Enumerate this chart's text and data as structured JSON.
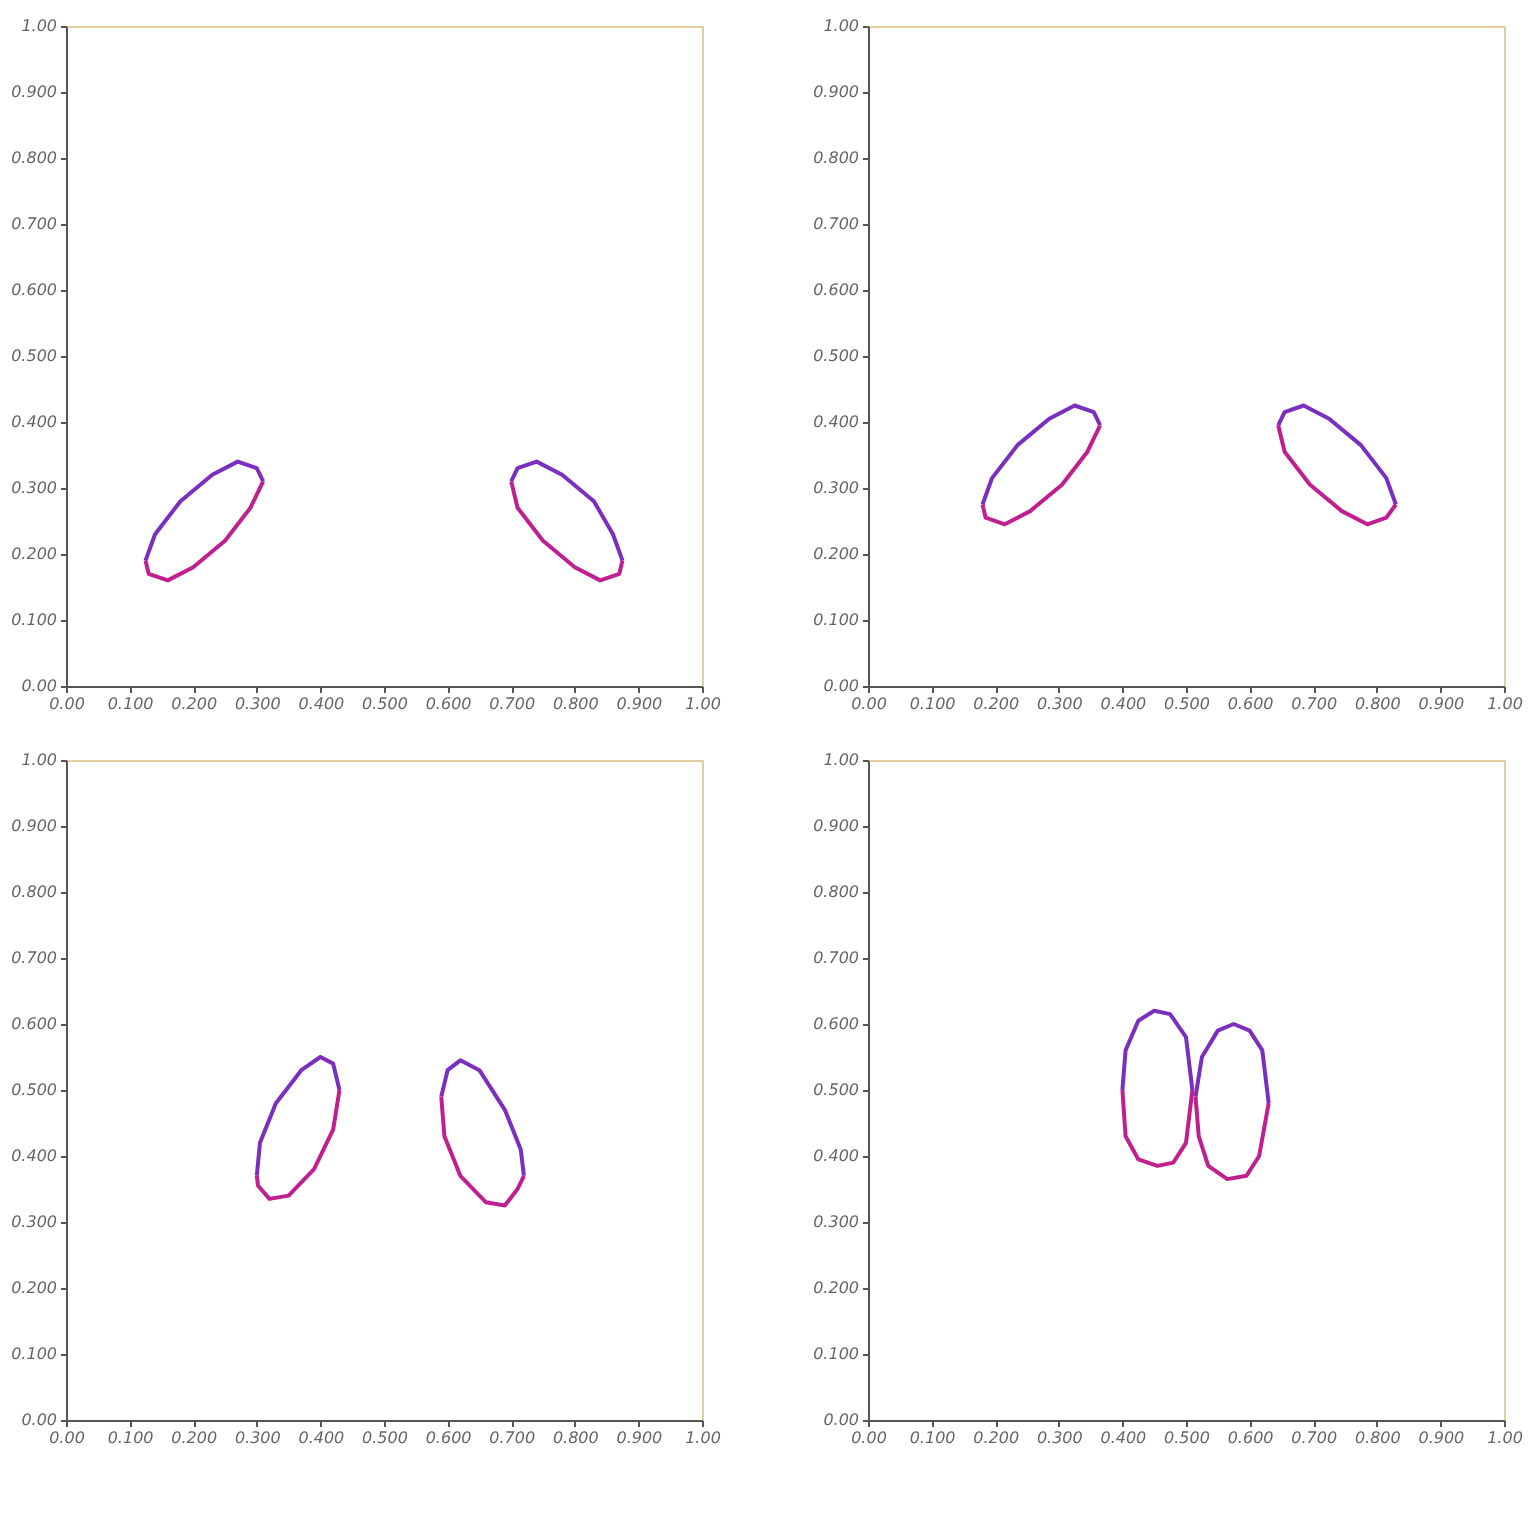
{
  "chart_data": [
    {
      "type": "line",
      "marker": "none",
      "line_style": "solid",
      "grid": false,
      "xlim": [
        0,
        1
      ],
      "ylim": [
        0,
        1
      ],
      "xticks": [
        {
          "value": 0,
          "label": "0.00"
        },
        {
          "value": 0.1,
          "label": "0.100"
        },
        {
          "value": 0.2,
          "label": "0.200"
        },
        {
          "value": 0.3,
          "label": "0.300"
        },
        {
          "value": 0.4,
          "label": "0.400"
        },
        {
          "value": 0.5,
          "label": "0.500"
        },
        {
          "value": 0.6,
          "label": "0.600"
        },
        {
          "value": 0.7,
          "label": "0.700"
        },
        {
          "value": 0.8,
          "label": "0.800"
        },
        {
          "value": 0.9,
          "label": "0.900"
        },
        {
          "value": 1,
          "label": "1.00"
        }
      ],
      "yticks": [
        {
          "value": 0,
          "label": "0.00"
        },
        {
          "value": 0.1,
          "label": "0.100"
        },
        {
          "value": 0.2,
          "label": "0.200"
        },
        {
          "value": 0.3,
          "label": "0.300"
        },
        {
          "value": 0.4,
          "label": "0.400"
        },
        {
          "value": 0.5,
          "label": "0.500"
        },
        {
          "value": 0.6,
          "label": "0.600"
        },
        {
          "value": 0.7,
          "label": "0.700"
        },
        {
          "value": 0.8,
          "label": "0.800"
        },
        {
          "value": 0.9,
          "label": "0.900"
        },
        {
          "value": 1,
          "label": "1.00"
        }
      ],
      "series": [
        {
          "color": "#7b2fbf",
          "x": [
            0.125,
            0.14,
            0.18,
            0.23,
            0.27,
            0.3,
            0.31
          ],
          "values": [
            0.19,
            0.23,
            0.28,
            0.32,
            0.34,
            0.33,
            0.31
          ]
        },
        {
          "color": "#c0208f",
          "x": [
            0.125,
            0.13,
            0.16,
            0.2,
            0.25,
            0.29,
            0.31
          ],
          "values": [
            0.19,
            0.17,
            0.16,
            0.18,
            0.22,
            0.27,
            0.31
          ]
        },
        {
          "color": "#7b2fbf",
          "x": [
            0.7,
            0.71,
            0.74,
            0.78,
            0.83,
            0.86,
            0.875
          ],
          "values": [
            0.31,
            0.33,
            0.34,
            0.32,
            0.28,
            0.23,
            0.19
          ]
        },
        {
          "color": "#c0208f",
          "x": [
            0.7,
            0.71,
            0.75,
            0.8,
            0.84,
            0.87,
            0.875
          ],
          "values": [
            0.31,
            0.27,
            0.22,
            0.18,
            0.16,
            0.17,
            0.19
          ]
        }
      ]
    },
    {
      "type": "line",
      "marker": "none",
      "line_style": "solid",
      "grid": false,
      "xlim": [
        0,
        1
      ],
      "ylim": [
        0,
        1
      ],
      "xticks": [
        {
          "value": 0,
          "label": "0.00"
        },
        {
          "value": 0.1,
          "label": "0.100"
        },
        {
          "value": 0.2,
          "label": "0.200"
        },
        {
          "value": 0.3,
          "label": "0.300"
        },
        {
          "value": 0.4,
          "label": "0.400"
        },
        {
          "value": 0.5,
          "label": "0.500"
        },
        {
          "value": 0.6,
          "label": "0.600"
        },
        {
          "value": 0.7,
          "label": "0.700"
        },
        {
          "value": 0.8,
          "label": "0.800"
        },
        {
          "value": 0.9,
          "label": "0.900"
        },
        {
          "value": 1,
          "label": "1.00"
        }
      ],
      "yticks": [
        {
          "value": 0,
          "label": "0.00"
        },
        {
          "value": 0.1,
          "label": "0.100"
        },
        {
          "value": 0.2,
          "label": "0.200"
        },
        {
          "value": 0.3,
          "label": "0.300"
        },
        {
          "value": 0.4,
          "label": "0.400"
        },
        {
          "value": 0.5,
          "label": "0.500"
        },
        {
          "value": 0.6,
          "label": "0.600"
        },
        {
          "value": 0.7,
          "label": "0.700"
        },
        {
          "value": 0.8,
          "label": "0.800"
        },
        {
          "value": 0.9,
          "label": "0.900"
        },
        {
          "value": 1,
          "label": "1.00"
        }
      ],
      "series": [
        {
          "color": "#7b2fbf",
          "x": [
            0.18,
            0.195,
            0.235,
            0.285,
            0.325,
            0.355,
            0.365
          ],
          "values": [
            0.275,
            0.315,
            0.365,
            0.405,
            0.425,
            0.415,
            0.395
          ]
        },
        {
          "color": "#c0208f",
          "x": [
            0.18,
            0.185,
            0.215,
            0.255,
            0.305,
            0.345,
            0.365
          ],
          "values": [
            0.275,
            0.255,
            0.245,
            0.265,
            0.305,
            0.355,
            0.395
          ]
        },
        {
          "color": "#7b2fbf",
          "x": [
            0.645,
            0.655,
            0.685,
            0.725,
            0.775,
            0.815,
            0.83
          ],
          "values": [
            0.395,
            0.415,
            0.425,
            0.405,
            0.365,
            0.315,
            0.275
          ]
        },
        {
          "color": "#c0208f",
          "x": [
            0.645,
            0.655,
            0.695,
            0.745,
            0.785,
            0.815,
            0.83
          ],
          "values": [
            0.395,
            0.355,
            0.305,
            0.265,
            0.245,
            0.255,
            0.275
          ]
        }
      ]
    },
    {
      "type": "line",
      "marker": "none",
      "line_style": "solid",
      "grid": false,
      "xlim": [
        0,
        1
      ],
      "ylim": [
        0,
        1
      ],
      "xticks": [
        {
          "value": 0,
          "label": "0.00"
        },
        {
          "value": 0.1,
          "label": "0.100"
        },
        {
          "value": 0.2,
          "label": "0.200"
        },
        {
          "value": 0.3,
          "label": "0.300"
        },
        {
          "value": 0.4,
          "label": "0.400"
        },
        {
          "value": 0.5,
          "label": "0.500"
        },
        {
          "value": 0.6,
          "label": "0.600"
        },
        {
          "value": 0.7,
          "label": "0.700"
        },
        {
          "value": 0.8,
          "label": "0.800"
        },
        {
          "value": 0.9,
          "label": "0.900"
        },
        {
          "value": 1,
          "label": "1.00"
        }
      ],
      "yticks": [
        {
          "value": 0,
          "label": "0.00"
        },
        {
          "value": 0.1,
          "label": "0.100"
        },
        {
          "value": 0.2,
          "label": "0.200"
        },
        {
          "value": 0.3,
          "label": "0.300"
        },
        {
          "value": 0.4,
          "label": "0.400"
        },
        {
          "value": 0.5,
          "label": "0.500"
        },
        {
          "value": 0.6,
          "label": "0.600"
        },
        {
          "value": 0.7,
          "label": "0.700"
        },
        {
          "value": 0.8,
          "label": "0.800"
        },
        {
          "value": 0.9,
          "label": "0.900"
        },
        {
          "value": 1,
          "label": "1.00"
        }
      ],
      "series": [
        {
          "color": "#7b2fbf",
          "x": [
            0.3,
            0.305,
            0.33,
            0.37,
            0.4,
            0.42,
            0.43
          ],
          "values": [
            0.37,
            0.42,
            0.48,
            0.53,
            0.55,
            0.54,
            0.5
          ]
        },
        {
          "color": "#c0208f",
          "x": [
            0.3,
            0.302,
            0.32,
            0.35,
            0.39,
            0.42,
            0.43
          ],
          "values": [
            0.37,
            0.355,
            0.335,
            0.34,
            0.38,
            0.44,
            0.5
          ]
        },
        {
          "color": "#7b2fbf",
          "x": [
            0.59,
            0.6,
            0.62,
            0.65,
            0.69,
            0.715,
            0.72
          ],
          "values": [
            0.49,
            0.53,
            0.545,
            0.53,
            0.47,
            0.41,
            0.37
          ]
        },
        {
          "color": "#c0208f",
          "x": [
            0.59,
            0.595,
            0.62,
            0.66,
            0.69,
            0.71,
            0.72
          ],
          "values": [
            0.49,
            0.43,
            0.37,
            0.33,
            0.325,
            0.35,
            0.37
          ]
        }
      ]
    },
    {
      "type": "line",
      "marker": "none",
      "line_style": "solid",
      "grid": false,
      "xlim": [
        0,
        1
      ],
      "ylim": [
        0,
        1
      ],
      "xticks": [
        {
          "value": 0,
          "label": "0.00"
        },
        {
          "value": 0.1,
          "label": "0.100"
        },
        {
          "value": 0.2,
          "label": "0.200"
        },
        {
          "value": 0.3,
          "label": "0.300"
        },
        {
          "value": 0.4,
          "label": "0.400"
        },
        {
          "value": 0.5,
          "label": "0.500"
        },
        {
          "value": 0.6,
          "label": "0.600"
        },
        {
          "value": 0.7,
          "label": "0.700"
        },
        {
          "value": 0.8,
          "label": "0.800"
        },
        {
          "value": 0.9,
          "label": "0.900"
        },
        {
          "value": 1,
          "label": "1.00"
        }
      ],
      "yticks": [
        {
          "value": 0,
          "label": "0.00"
        },
        {
          "value": 0.1,
          "label": "0.100"
        },
        {
          "value": 0.2,
          "label": "0.200"
        },
        {
          "value": 0.3,
          "label": "0.300"
        },
        {
          "value": 0.4,
          "label": "0.400"
        },
        {
          "value": 0.5,
          "label": "0.500"
        },
        {
          "value": 0.6,
          "label": "0.600"
        },
        {
          "value": 0.7,
          "label": "0.700"
        },
        {
          "value": 0.8,
          "label": "0.800"
        },
        {
          "value": 0.9,
          "label": "0.900"
        },
        {
          "value": 1,
          "label": "1.00"
        }
      ],
      "series": [
        {
          "color": "#7b2fbf",
          "x": [
            0.4,
            0.405,
            0.425,
            0.45,
            0.475,
            0.5,
            0.51
          ],
          "values": [
            0.5,
            0.56,
            0.605,
            0.62,
            0.615,
            0.58,
            0.5
          ]
        },
        {
          "color": "#c0208f",
          "x": [
            0.4,
            0.405,
            0.425,
            0.455,
            0.48,
            0.5,
            0.51
          ],
          "values": [
            0.5,
            0.43,
            0.395,
            0.385,
            0.39,
            0.42,
            0.5
          ]
        },
        {
          "color": "#7b2fbf",
          "x": [
            0.515,
            0.525,
            0.55,
            0.575,
            0.6,
            0.62,
            0.63
          ],
          "values": [
            0.49,
            0.55,
            0.59,
            0.6,
            0.59,
            0.56,
            0.48
          ]
        },
        {
          "color": "#c0208f",
          "x": [
            0.515,
            0.52,
            0.535,
            0.565,
            0.595,
            0.615,
            0.63
          ],
          "values": [
            0.49,
            0.43,
            0.385,
            0.365,
            0.37,
            0.4,
            0.48
          ]
        }
      ]
    }
  ]
}
